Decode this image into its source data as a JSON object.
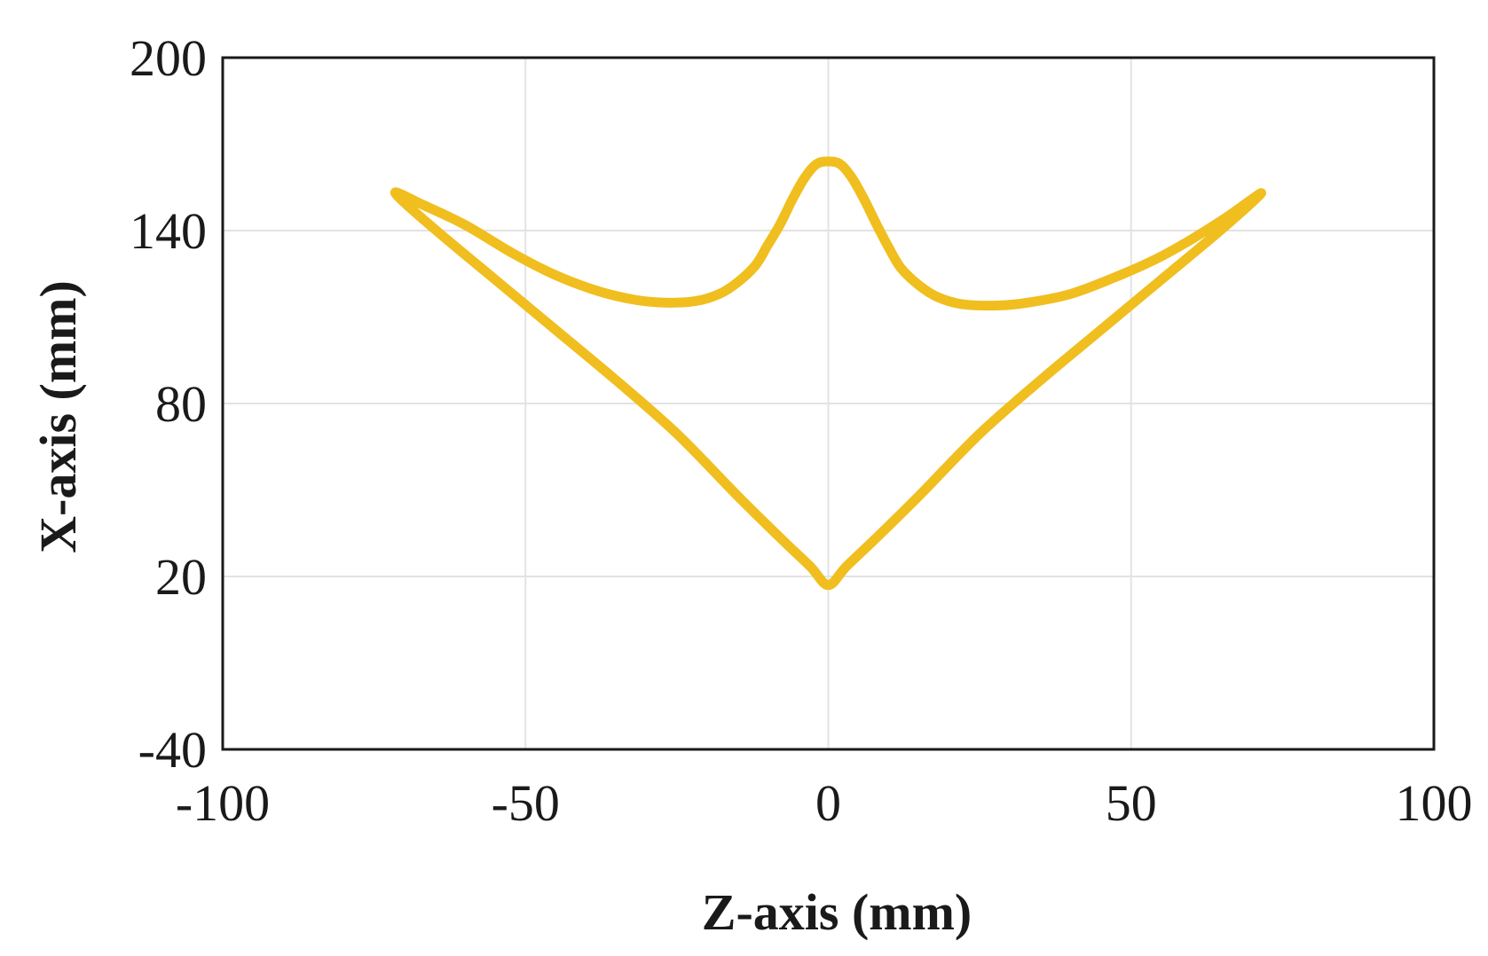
{
  "chart_data": {
    "type": "line",
    "title": "",
    "xlabel": "Z-axis (mm)",
    "ylabel": "X-axis (mm)",
    "xlim": [
      -100,
      100
    ],
    "ylim": [
      -40,
      200
    ],
    "xticks": [
      -100,
      -50,
      0,
      50,
      100
    ],
    "yticks": [
      -40,
      20,
      80,
      140,
      200
    ],
    "x_tick_labels": [
      "-100",
      "-50",
      "0",
      "50",
      "100"
    ],
    "y_tick_labels": [
      "-40",
      "20",
      "80",
      "140",
      "200"
    ],
    "grid": true,
    "legend": "none",
    "series": [
      {
        "color": "#F0BE1E",
        "closed": true,
        "x": [
          -71.5,
          -67,
          -60,
          -52,
          -45,
          -38,
          -32,
          -27,
          -22,
          -18,
          -15,
          -12,
          -10,
          -8,
          -6,
          -4,
          -2,
          0,
          2,
          4,
          6,
          8,
          10,
          12,
          15,
          18,
          22,
          28,
          33,
          40,
          47,
          54,
          60,
          66,
          71.5,
          65,
          55,
          45,
          35,
          25,
          15,
          8,
          3,
          0,
          -3,
          -8,
          -15,
          -25,
          -35,
          -45,
          -55,
          -65
        ],
        "y": [
          153,
          149,
          142,
          132,
          124.5,
          119,
          116,
          115,
          115.5,
          118,
          122,
          128,
          135,
          142,
          150.5,
          158,
          163,
          164,
          163,
          158,
          150.5,
          142,
          134,
          127,
          121,
          117,
          114.5,
          114,
          115,
          118,
          123.5,
          130,
          137,
          145,
          153,
          140.5,
          123,
          105.5,
          88,
          69.5,
          48,
          33.5,
          23.5,
          17,
          23.5,
          33.5,
          48,
          69.5,
          88,
          105.5,
          123,
          140.5
        ]
      }
    ]
  }
}
